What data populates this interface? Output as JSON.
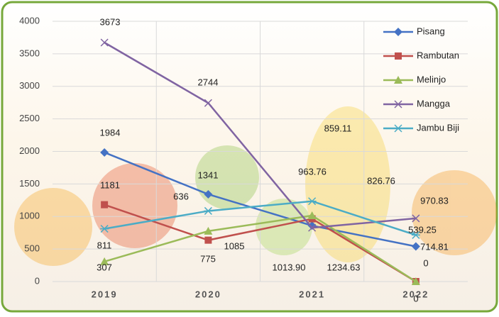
{
  "chart_data": {
    "type": "line",
    "categories": [
      "2019",
      "2020",
      "2021",
      "2022"
    ],
    "ylim": [
      0,
      4000
    ],
    "yticks": [
      0,
      500,
      1000,
      1500,
      2000,
      2500,
      3000,
      3500,
      4000
    ],
    "grid": true,
    "legend_position": "upper right",
    "series": [
      {
        "name": "Pisang",
        "color": "#4472c4",
        "marker": "diamond",
        "values": [
          1984,
          1341,
          859.11,
          539.25
        ]
      },
      {
        "name": "Rambutan",
        "color": "#c0504d",
        "marker": "square",
        "values": [
          1181,
          636,
          963.76,
          0
        ]
      },
      {
        "name": "Melinjo",
        "color": "#9bbb59",
        "marker": "triangle",
        "values": [
          307,
          775,
          1013.9,
          0
        ],
        "value_labels": [
          "307",
          "775",
          "1013.90",
          "0"
        ]
      },
      {
        "name": "Mangga",
        "color": "#8064a2",
        "marker": "x",
        "values": [
          3673,
          2744,
          826.76,
          970.83
        ]
      },
      {
        "name": "Jambu Biji",
        "color": "#4bacc6",
        "marker": "star",
        "values": [
          811,
          1085,
          1234.63,
          714.81
        ]
      }
    ]
  }
}
